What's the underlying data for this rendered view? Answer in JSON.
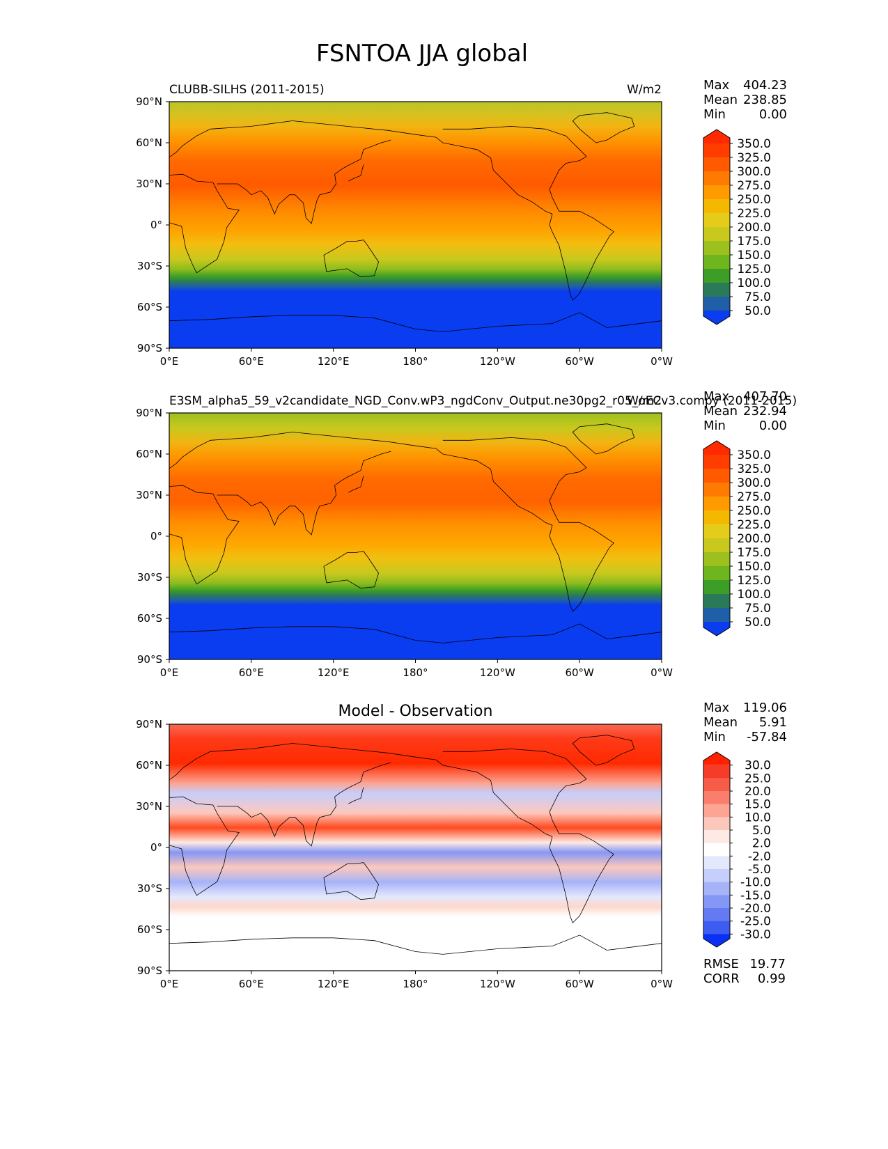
{
  "figure_title": "FSNTOA JJA global",
  "colors": {
    "land_line": "#000000",
    "frame": "#000000"
  },
  "chart_data": [
    {
      "type": "heatmap",
      "name": "test",
      "title_left": "CLUBB-SILHS (2011-2015)",
      "title_right": "W/m2",
      "title_center": "",
      "xticks": [
        "0°E",
        "60°E",
        "120°E",
        "180°",
        "120°W",
        "60°W",
        "0°W"
      ],
      "yticks": [
        "90°N",
        "60°N",
        "30°N",
        "0°",
        "30°S",
        "60°S",
        "90°S"
      ],
      "xlim": [
        0,
        360
      ],
      "ylim": [
        -90,
        90
      ],
      "stats": [
        {
          "label": "Max",
          "value": "404.23"
        },
        {
          "label": "Mean",
          "value": "238.85"
        },
        {
          "label": "Min",
          "value": "0.00"
        }
      ],
      "colorbar": {
        "levels": [
          "350.0",
          "325.0",
          "300.0",
          "275.0",
          "250.0",
          "225.0",
          "200.0",
          "175.0",
          "150.0",
          "125.0",
          "100.0",
          "75.0",
          "50.0"
        ],
        "colors": [
          "#ff2a00",
          "#ff3d00",
          "#ff5a00",
          "#ff7a00",
          "#ff9a00",
          "#f5b800",
          "#e6cc1a",
          "#c8c81e",
          "#9cc01e",
          "#6fb51e",
          "#3c9e26",
          "#2a7a5a",
          "#1f5fa8",
          "#0a3cf0"
        ]
      }
    },
    {
      "type": "heatmap",
      "name": "reference",
      "title_left": "E3SM_alpha5_59_v2candidate_NGD_Conv.wP3_ngdConv_Output.ne30pg2_r05_oECv3.compy (2011-2015)",
      "title_right": "W/m2",
      "title_center": "",
      "xticks": [
        "0°E",
        "60°E",
        "120°E",
        "180°",
        "120°W",
        "60°W",
        "0°W"
      ],
      "yticks": [
        "90°N",
        "60°N",
        "30°N",
        "0°",
        "30°S",
        "60°S",
        "90°S"
      ],
      "xlim": [
        0,
        360
      ],
      "ylim": [
        -90,
        90
      ],
      "stats": [
        {
          "label": "Max",
          "value": "407.70"
        },
        {
          "label": "Mean",
          "value": "232.94"
        },
        {
          "label": "Min",
          "value": "0.00"
        }
      ],
      "colorbar": {
        "levels": [
          "350.0",
          "325.0",
          "300.0",
          "275.0",
          "250.0",
          "225.0",
          "200.0",
          "175.0",
          "150.0",
          "125.0",
          "100.0",
          "75.0",
          "50.0"
        ],
        "colors": [
          "#ff2a00",
          "#ff3d00",
          "#ff5a00",
          "#ff7a00",
          "#ff9a00",
          "#f5b800",
          "#e6cc1a",
          "#c8c81e",
          "#9cc01e",
          "#6fb51e",
          "#3c9e26",
          "#2a7a5a",
          "#1f5fa8",
          "#0a3cf0"
        ]
      }
    },
    {
      "type": "heatmap",
      "name": "difference",
      "title_left": "",
      "title_right": "",
      "title_center": "Model - Observation",
      "xticks": [
        "0°E",
        "60°E",
        "120°E",
        "180°",
        "120°W",
        "60°W",
        "0°W"
      ],
      "yticks": [
        "90°N",
        "60°N",
        "30°N",
        "0°",
        "30°S",
        "60°S",
        "90°S"
      ],
      "xlim": [
        0,
        360
      ],
      "ylim": [
        -90,
        90
      ],
      "stats": [
        {
          "label": "Max",
          "value": "119.06"
        },
        {
          "label": "Mean",
          "value": "5.91"
        },
        {
          "label": "Min",
          "value": "-57.84"
        }
      ],
      "extra_stats": [
        {
          "label": "RMSE",
          "value": "19.77"
        },
        {
          "label": "CORR",
          "value": "0.99"
        }
      ],
      "colorbar": {
        "levels": [
          "30.0",
          "25.0",
          "20.0",
          "15.0",
          "10.0",
          "5.0",
          "2.0",
          "-2.0",
          "-5.0",
          "-10.0",
          "-15.0",
          "-20.0",
          "-25.0",
          "-30.0"
        ],
        "colors": [
          "#ff2200",
          "#f53c28",
          "#f75c48",
          "#fa7e6c",
          "#fca594",
          "#fdc8bc",
          "#feeae4",
          "#ffffff",
          "#e4e8fd",
          "#c6cefb",
          "#a6b3f8",
          "#8597f5",
          "#647af2",
          "#3f5cf0",
          "#0a30f5"
        ]
      }
    }
  ]
}
